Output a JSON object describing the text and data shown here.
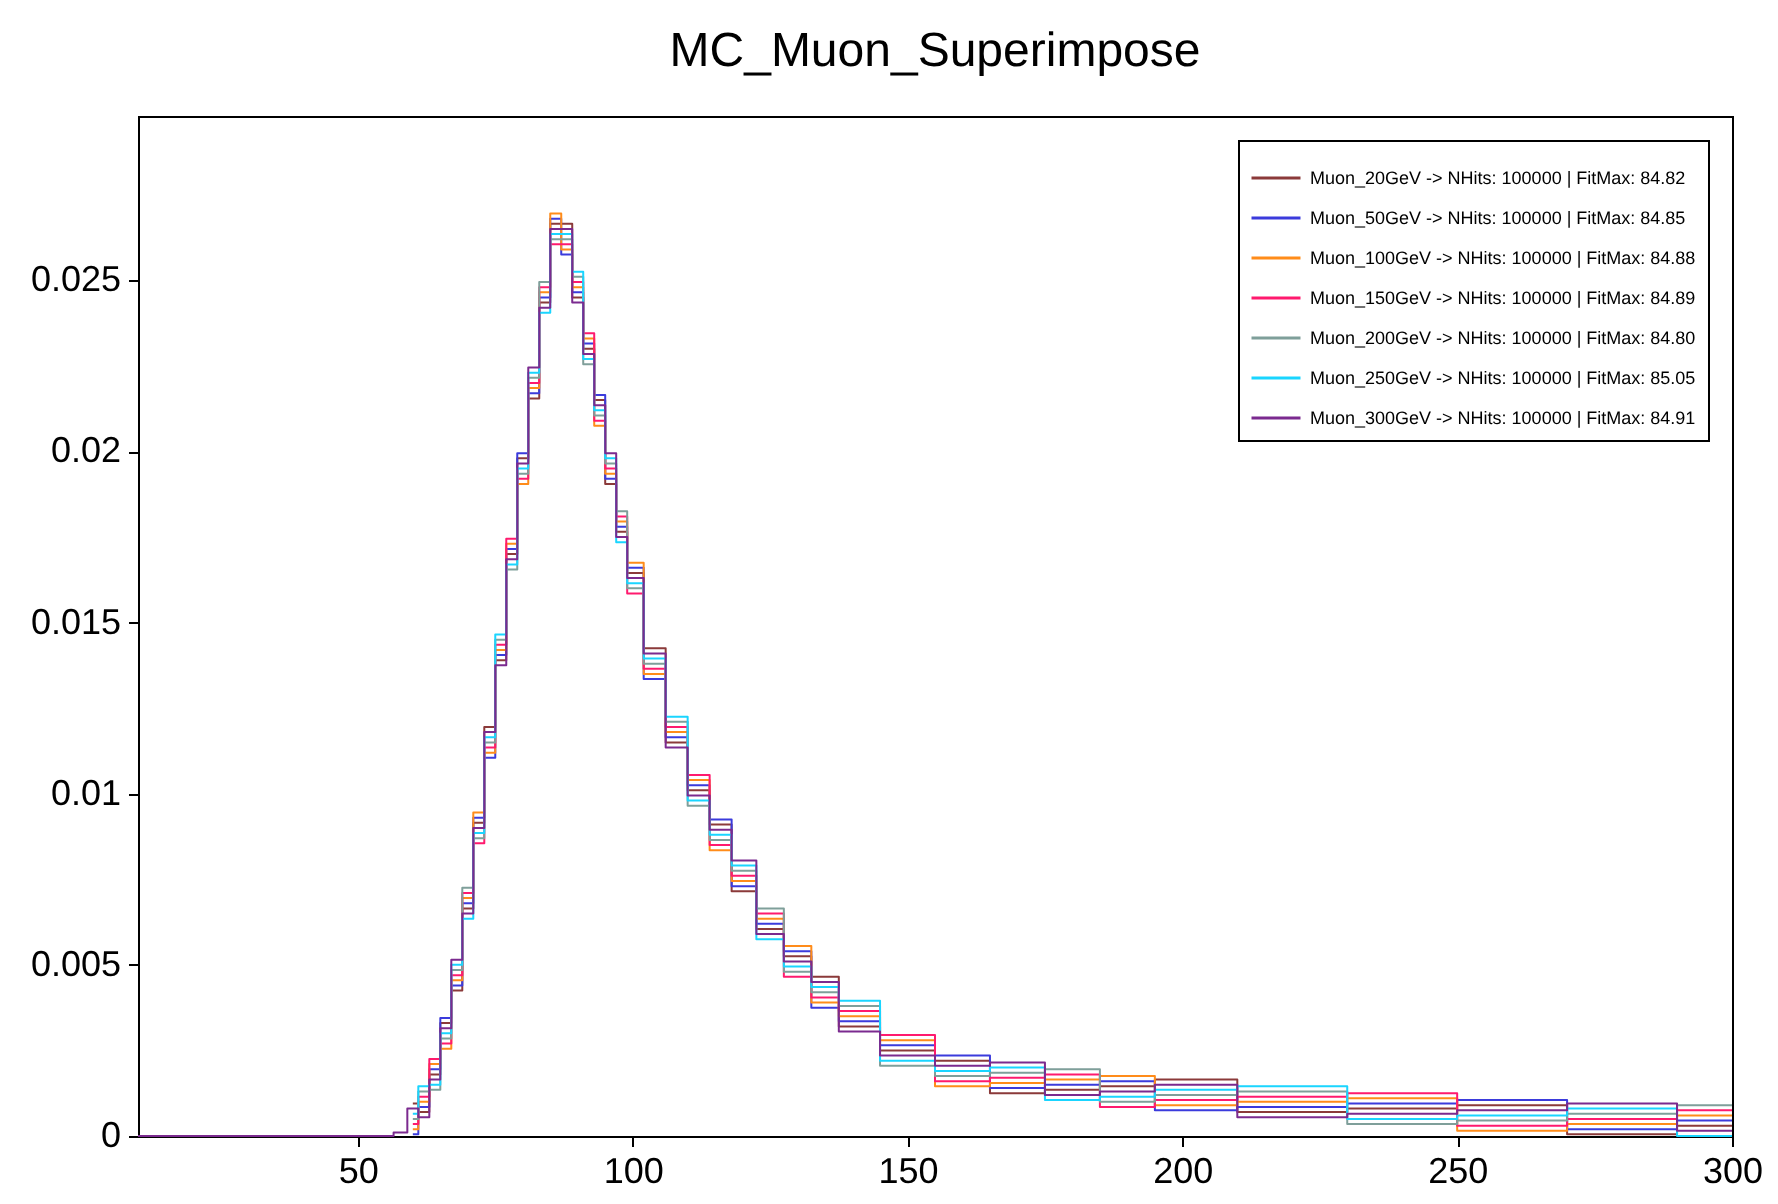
{
  "chart_data": {
    "type": "step",
    "title": "MC_Muon_Superimpose",
    "x": [
      10,
      55,
      58,
      60,
      62,
      64,
      66,
      68,
      70,
      72,
      74,
      76,
      78,
      80,
      82,
      84,
      86,
      88,
      90,
      92,
      94,
      96,
      98,
      100,
      104,
      108,
      112,
      116,
      120,
      125,
      130,
      135,
      140,
      150,
      160,
      170,
      180,
      190,
      200,
      220,
      240,
      260,
      280,
      300
    ],
    "series": [
      {
        "name": "Muon_20GeV -> NHits: 100000 | FitMax: 84.82",
        "color": "#8b3a3a",
        "values": [
          null,
          null,
          null,
          0.00095,
          0.0007,
          0.0018,
          0.0033,
          0.00425,
          0.00665,
          0.00915,
          0.01195,
          0.0139,
          0.017,
          0.0198,
          0.02155,
          0.02435,
          0.02665,
          0.02665,
          0.0245,
          0.023,
          0.0215,
          0.01905,
          0.01765,
          0.01645,
          0.01425,
          0.0115,
          0.0101,
          0.0091,
          0.00715,
          0.00605,
          0.00525,
          0.00465,
          0.0032,
          0.0025,
          0.0022,
          0.00125,
          0.00135,
          0.00145,
          0.00165,
          0.0007,
          0.0008,
          0.0009,
          5e-05,
          0.0003
        ]
      },
      {
        "name": "Muon_50GeV -> NHits: 100000 | FitMax: 84.85",
        "color": "#3b3bdc",
        "values": [
          null,
          null,
          null,
          5e-05,
          0.00085,
          0.00195,
          0.00345,
          0.0044,
          0.0068,
          0.0093,
          0.01105,
          0.01405,
          0.01715,
          0.01995,
          0.0217,
          0.0245,
          0.0268,
          0.02575,
          0.02465,
          0.02315,
          0.02165,
          0.0192,
          0.0178,
          0.0166,
          0.01335,
          0.01165,
          0.01025,
          0.00925,
          0.0073,
          0.0062,
          0.0054,
          0.00375,
          0.00335,
          0.00265,
          0.00235,
          0.0014,
          0.0015,
          0.0016,
          0.00075,
          0.00085,
          0.00095,
          0.00105,
          0.0002,
          0.00045
        ]
      },
      {
        "name": "Muon_100GeV -> NHits: 100000 | FitMax: 84.88",
        "color": "#ff8c1a",
        "values": [
          null,
          null,
          null,
          0.0002,
          0.001,
          0.0021,
          0.00255,
          0.00455,
          0.00695,
          0.00945,
          0.0112,
          0.0142,
          0.0173,
          0.01905,
          0.02185,
          0.02465,
          0.02695,
          0.0259,
          0.0248,
          0.0233,
          0.02075,
          0.01935,
          0.01795,
          0.01675,
          0.0135,
          0.0118,
          0.0104,
          0.00835,
          0.00745,
          0.00635,
          0.00555,
          0.0039,
          0.0035,
          0.0028,
          0.00145,
          0.00155,
          0.00165,
          0.00175,
          0.0009,
          0.001,
          0.0011,
          0.00015,
          0.00035,
          0.0006
        ]
      },
      {
        "name": "Muon_150GeV -> NHits: 100000 | FitMax: 84.89",
        "color": "#ff1a6e",
        "values": [
          null,
          null,
          null,
          0.00035,
          0.00115,
          0.00225,
          0.0027,
          0.0047,
          0.0071,
          0.00855,
          0.01135,
          0.01435,
          0.01745,
          0.0192,
          0.022,
          0.0248,
          0.02605,
          0.02605,
          0.02495,
          0.02345,
          0.0209,
          0.0195,
          0.0181,
          0.01585,
          0.01365,
          0.01195,
          0.01055,
          0.0085,
          0.0076,
          0.0065,
          0.00465,
          0.00405,
          0.00365,
          0.00295,
          0.0016,
          0.0017,
          0.0018,
          0.00085,
          0.00105,
          0.00115,
          0.00125,
          0.0003,
          0.0005,
          0.00075
        ]
      },
      {
        "name": "Muon_200GeV -> NHits: 100000 | FitMax: 84.80",
        "color": "#7f9f9a",
        "values": [
          null,
          null,
          null,
          0.0005,
          0.0013,
          0.00135,
          0.00285,
          0.00485,
          0.00725,
          0.0087,
          0.0115,
          0.0145,
          0.01655,
          0.01935,
          0.02215,
          0.02495,
          0.0262,
          0.0262,
          0.0251,
          0.02255,
          0.02105,
          0.01965,
          0.01825,
          0.016,
          0.0138,
          0.0121,
          0.00965,
          0.00865,
          0.00775,
          0.00665,
          0.0048,
          0.0042,
          0.0038,
          0.00205,
          0.00175,
          0.00185,
          0.00195,
          0.001,
          0.0012,
          0.0013,
          0.00035,
          0.00045,
          0.00065,
          0.0009
        ]
      },
      {
        "name": "Muon_250GeV -> NHits: 100000 | FitMax: 85.05",
        "color": "#1ad5ff",
        "values": [
          null,
          null,
          null,
          0.00065,
          0.00145,
          0.0015,
          0.003,
          0.005,
          0.00635,
          0.00885,
          0.01165,
          0.01465,
          0.0167,
          0.0195,
          0.0223,
          0.02405,
          0.02635,
          0.02635,
          0.02525,
          0.0227,
          0.0212,
          0.0198,
          0.01735,
          0.01615,
          0.01395,
          0.01225,
          0.0098,
          0.0088,
          0.0079,
          0.00575,
          0.00495,
          0.00435,
          0.00395,
          0.0022,
          0.0019,
          0.002,
          0.00105,
          0.00115,
          0.00135,
          0.00145,
          0.0005,
          0.0006,
          0.0008,
          0
        ]
      },
      {
        "name": "Muon_300GeV -> NHits: 100000 | FitMax: 84.91",
        "color": "#7b2a8f",
        "values": [
          0,
          0,
          0.0001,
          0.0008,
          0.00055,
          0.00165,
          0.00315,
          0.00515,
          0.0065,
          0.009,
          0.0118,
          0.01375,
          0.01685,
          0.01965,
          0.02245,
          0.0242,
          0.0265,
          0.0265,
          0.02435,
          0.02285,
          0.02135,
          0.01995,
          0.0175,
          0.0163,
          0.0141,
          0.01135,
          0.00995,
          0.00895,
          0.00805,
          0.0059,
          0.0051,
          0.0045,
          0.00305,
          0.00235,
          0.00205,
          0.00215,
          0.0012,
          0.0013,
          0.0015,
          0.00055,
          0.00065,
          0.00075,
          0.00095,
          0.00015
        ]
      }
    ],
    "xlim": [
      10,
      300
    ],
    "xticks": [
      50,
      100,
      150,
      200,
      250,
      300
    ],
    "ylim": [
      0,
      0.0298
    ],
    "yticks": [
      0,
      0.005,
      0.01,
      0.015,
      0.02,
      0.025
    ],
    "grid": false,
    "legend": "top right"
  }
}
